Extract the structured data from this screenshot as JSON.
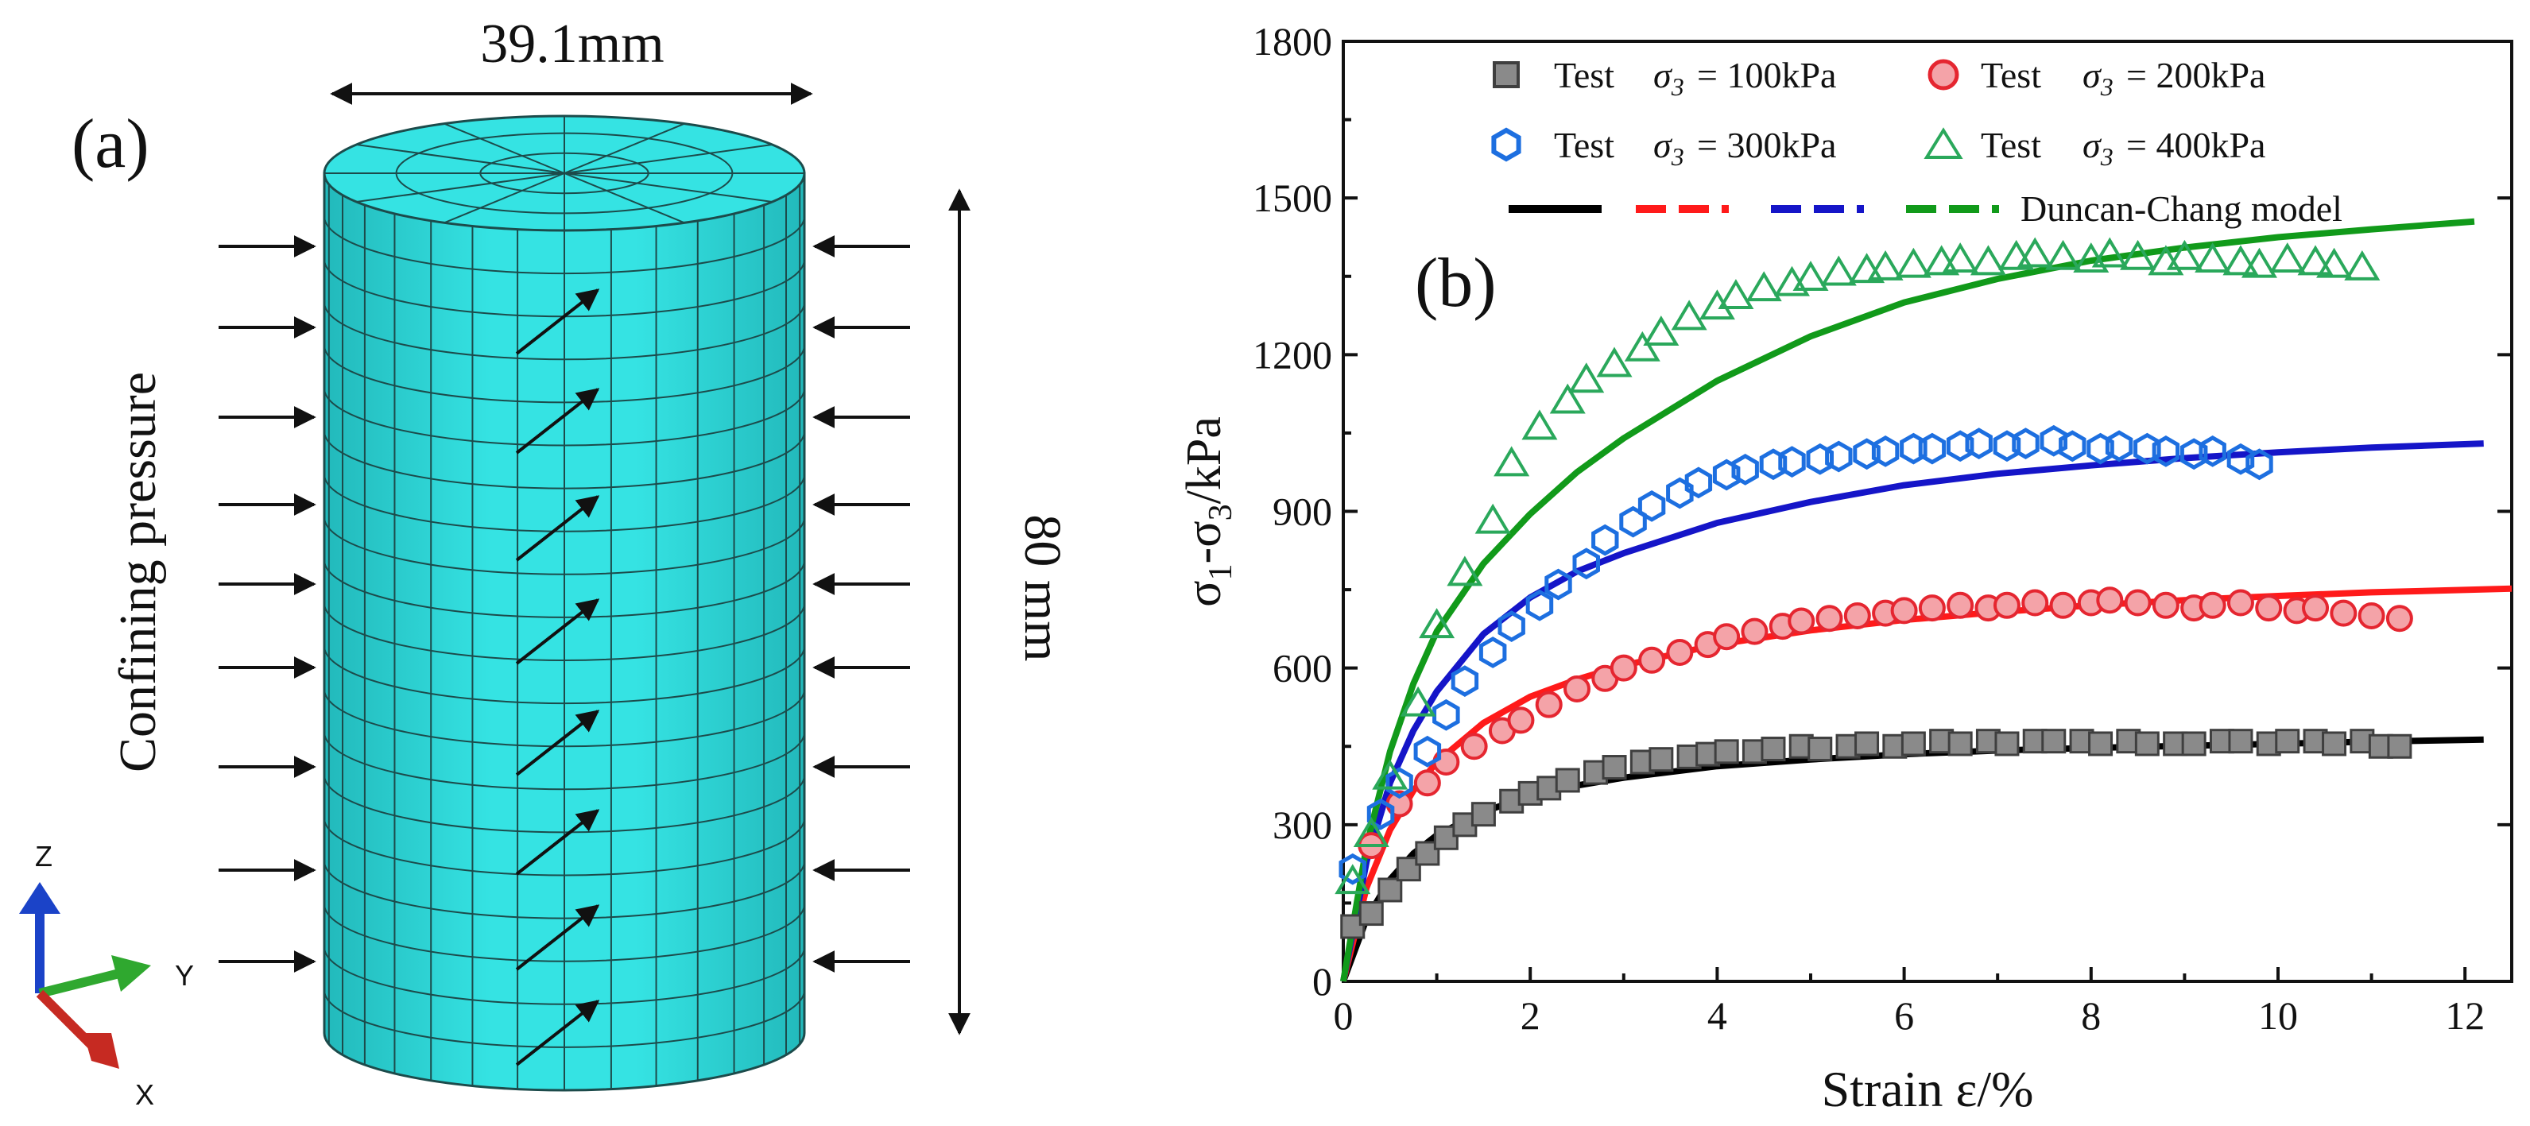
{
  "panel_a": {
    "label": "(a)",
    "width_label": "39.1mm",
    "height_label": "80 mm",
    "pressure_label": "Confining pressure",
    "axes": {
      "z": "Z",
      "y": "Y",
      "x": "X"
    }
  },
  "colors": {
    "cylinder": "#35e3e3",
    "cylinder_shade": "#22b9bb",
    "s100_fill": "#8a8a8a",
    "s100_edge": "#3f3f3f",
    "s200_fill": "#f4a3a8",
    "s200_edge": "#e52630",
    "s300_edge": "#1d6fe0",
    "s400_edge": "#2aa85b",
    "line100": "#000000",
    "line200": "#ff1a1a",
    "line300": "#1515c8",
    "line400": "#119a1a",
    "axis_z": "#1b43c8",
    "axis_y": "#2fa82f",
    "axis_x": "#c62a22"
  },
  "chart_data": {
    "type": "scatter",
    "panel_label": "(b)",
    "xlabel": "Strain ε/%",
    "ylabel": "σ1-σ3/kPa",
    "ylabel_parts": {
      "sigma1": "σ",
      "sub1": "1",
      "mid": "-σ",
      "sub3": "3",
      "unit": "/kPa"
    },
    "xlim": [
      0,
      12.5
    ],
    "ylim": [
      0,
      1800
    ],
    "xticks": [
      0,
      2,
      4,
      6,
      8,
      10,
      12
    ],
    "yticks": [
      0,
      300,
      600,
      900,
      1200,
      1500,
      1800
    ],
    "legend": {
      "test_word": "Test",
      "sigma_symbol": "σ",
      "sigma_sub": "3",
      "entries": [
        "= 100kPa",
        "= 200kPa",
        "= 300kPa",
        "= 400kPa"
      ],
      "model_label": "Duncan-Chang model"
    },
    "series": [
      {
        "name": "Test σ3 = 100kPa",
        "kind": "test",
        "marker": "square",
        "x": [
          0.1,
          0.3,
          0.5,
          0.7,
          0.9,
          1.1,
          1.3,
          1.5,
          1.8,
          2.0,
          2.2,
          2.4,
          2.7,
          2.9,
          3.2,
          3.4,
          3.7,
          3.9,
          4.1,
          4.4,
          4.6,
          4.9,
          5.1,
          5.4,
          5.6,
          5.9,
          6.1,
          6.4,
          6.6,
          6.9,
          7.1,
          7.4,
          7.6,
          7.9,
          8.1,
          8.4,
          8.6,
          8.9,
          9.1,
          9.4,
          9.6,
          9.9,
          10.1,
          10.4,
          10.6,
          10.9,
          11.1,
          11.3
        ],
        "y": [
          105,
          130,
          175,
          215,
          245,
          275,
          300,
          320,
          345,
          360,
          370,
          385,
          400,
          410,
          420,
          425,
          430,
          435,
          440,
          440,
          445,
          450,
          445,
          450,
          455,
          450,
          455,
          460,
          455,
          460,
          455,
          460,
          460,
          460,
          455,
          460,
          455,
          455,
          455,
          460,
          460,
          455,
          460,
          460,
          455,
          460,
          450,
          450
        ]
      },
      {
        "name": "Test σ3 = 200kPa",
        "kind": "test",
        "marker": "circle",
        "x": [
          0.3,
          0.6,
          0.9,
          1.1,
          1.4,
          1.7,
          1.9,
          2.2,
          2.5,
          2.8,
          3.0,
          3.3,
          3.6,
          3.9,
          4.1,
          4.4,
          4.7,
          4.9,
          5.2,
          5.5,
          5.8,
          6.0,
          6.3,
          6.6,
          6.9,
          7.1,
          7.4,
          7.7,
          8.0,
          8.2,
          8.5,
          8.8,
          9.1,
          9.3,
          9.6,
          9.9,
          10.2,
          10.4,
          10.7,
          11.0,
          11.3
        ],
        "y": [
          260,
          340,
          380,
          420,
          450,
          480,
          500,
          530,
          560,
          580,
          600,
          615,
          630,
          645,
          660,
          670,
          680,
          690,
          695,
          700,
          705,
          710,
          715,
          720,
          715,
          720,
          725,
          720,
          725,
          730,
          725,
          720,
          715,
          720,
          725,
          715,
          710,
          715,
          705,
          700,
          695
        ]
      },
      {
        "name": "Test σ3 = 300kPa",
        "kind": "test",
        "marker": "hexagon",
        "x": [
          0.1,
          0.4,
          0.6,
          0.9,
          1.1,
          1.3,
          1.6,
          1.8,
          2.1,
          2.3,
          2.6,
          2.8,
          3.1,
          3.3,
          3.6,
          3.8,
          4.1,
          4.3,
          4.6,
          4.8,
          5.1,
          5.3,
          5.6,
          5.8,
          6.1,
          6.3,
          6.6,
          6.8,
          7.1,
          7.3,
          7.6,
          7.8,
          8.1,
          8.3,
          8.6,
          8.8,
          9.1,
          9.3,
          9.6,
          9.8
        ],
        "y": [
          215,
          320,
          380,
          440,
          510,
          575,
          630,
          680,
          720,
          760,
          800,
          845,
          880,
          910,
          935,
          955,
          970,
          980,
          990,
          995,
          1000,
          1005,
          1010,
          1015,
          1020,
          1020,
          1025,
          1030,
          1025,
          1030,
          1035,
          1025,
          1020,
          1025,
          1020,
          1015,
          1010,
          1015,
          1000,
          990
        ]
      },
      {
        "name": "Test σ3 = 400kPa",
        "kind": "test",
        "marker": "triangle",
        "x": [
          0.1,
          0.3,
          0.5,
          0.8,
          1.0,
          1.3,
          1.6,
          1.8,
          2.1,
          2.4,
          2.6,
          2.9,
          3.2,
          3.4,
          3.7,
          4.0,
          4.2,
          4.5,
          4.8,
          5.0,
          5.3,
          5.6,
          5.8,
          6.1,
          6.4,
          6.6,
          6.9,
          7.2,
          7.4,
          7.7,
          8.0,
          8.2,
          8.5,
          8.8,
          9.0,
          9.3,
          9.6,
          9.8,
          10.1,
          10.4,
          10.6,
          10.9
        ],
        "y": [
          190,
          280,
          390,
          530,
          680,
          780,
          880,
          990,
          1060,
          1110,
          1150,
          1180,
          1210,
          1240,
          1270,
          1290,
          1310,
          1325,
          1335,
          1345,
          1355,
          1360,
          1365,
          1370,
          1375,
          1380,
          1375,
          1385,
          1390,
          1385,
          1380,
          1390,
          1385,
          1375,
          1385,
          1380,
          1375,
          1370,
          1380,
          1375,
          1370,
          1365
        ]
      },
      {
        "name": "Duncan-Chang model 100kPa",
        "kind": "model",
        "x": [
          0,
          0.25,
          0.5,
          0.75,
          1.0,
          1.5,
          2.0,
          2.5,
          3.0,
          4.0,
          5.0,
          6.0,
          7.0,
          8.0,
          9.0,
          10.0,
          11.0,
          12.2
        ],
        "y": [
          0,
          120,
          195,
          245,
          280,
          325,
          355,
          375,
          390,
          412,
          425,
          435,
          442,
          447,
          451,
          455,
          459,
          463
        ]
      },
      {
        "name": "Duncan-Chang model 200kPa",
        "kind": "model",
        "x": [
          0,
          0.25,
          0.5,
          0.75,
          1.0,
          1.5,
          2.0,
          2.5,
          3.0,
          4.0,
          5.0,
          6.0,
          7.0,
          8.0,
          9.0,
          10.0,
          11.0,
          12.5
        ],
        "y": [
          0,
          180,
          290,
          365,
          420,
          495,
          545,
          578,
          605,
          645,
          672,
          692,
          707,
          720,
          730,
          738,
          745,
          752
        ]
      },
      {
        "name": "Duncan-Chang model 300kPa",
        "kind": "model",
        "x": [
          0,
          0.25,
          0.5,
          0.75,
          1.0,
          1.5,
          2.0,
          2.5,
          3.0,
          4.0,
          5.0,
          6.0,
          7.0,
          8.0,
          9.0,
          10.0,
          11.0,
          12.2
        ],
        "y": [
          0,
          230,
          380,
          480,
          555,
          665,
          735,
          785,
          820,
          878,
          918,
          950,
          972,
          988,
          1002,
          1013,
          1022,
          1030
        ]
      },
      {
        "name": "Duncan-Chang model 400kPa",
        "kind": "model",
        "x": [
          0,
          0.25,
          0.5,
          0.75,
          1.0,
          1.5,
          2.0,
          2.5,
          3.0,
          4.0,
          5.0,
          6.0,
          7.0,
          8.0,
          9.0,
          10.0,
          11.0,
          12.1
        ],
        "y": [
          0,
          260,
          440,
          570,
          670,
          800,
          895,
          975,
          1040,
          1150,
          1235,
          1300,
          1345,
          1380,
          1405,
          1425,
          1440,
          1455
        ]
      }
    ]
  }
}
